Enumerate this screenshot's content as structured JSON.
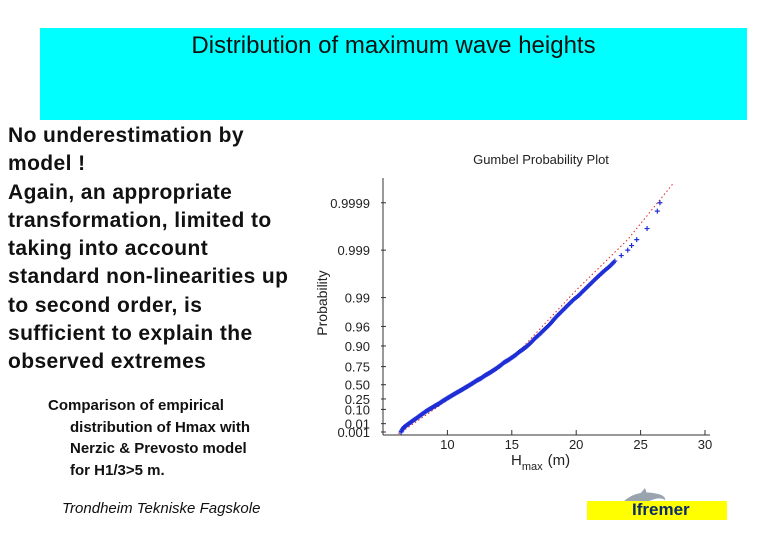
{
  "slide": {
    "title": "Distribution of maximum wave heights",
    "body_lines": [
      "No underestimation by",
      "model !",
      "Again, an appropriate",
      "transformation, limited to",
      "taking into account",
      "standard non-linearities up",
      "to second order, is",
      "sufficient to explain the",
      "observed extremes"
    ],
    "caption_lines": [
      "Comparison of empirical",
      "distribution of Hmax with",
      "Nerzic & Prevosto model",
      "for H1/3>5 m."
    ],
    "footer_school": "Trondheim Tekniske Fagskole",
    "logo_text": "Ifremer"
  },
  "colors": {
    "title_band": "#00ffff",
    "logo_band": "#ffff00",
    "data_points": "#1f2fd6",
    "model_line": "#e02020"
  },
  "chart_data": {
    "type": "scatter",
    "title": "Gumbel Probability Plot",
    "ylabel": "Probability",
    "xlabel_main": "H",
    "xlabel_sub": "max",
    "xlabel_unit": "(m)",
    "xlim": [
      5,
      30
    ],
    "x_ticks": [
      10,
      15,
      20,
      25,
      30
    ],
    "y_scale": "gumbel",
    "y_ticks": [
      "0.001",
      "0.01",
      "0.10",
      "0.25",
      "0.50",
      "0.75",
      "0.90",
      "0.96",
      "0.99",
      "0.999",
      "0.9999"
    ],
    "series": [
      {
        "kind": "empirical",
        "marker": "+",
        "points": [
          [
            6.4,
            0.001
          ],
          [
            6.6,
            0.004
          ],
          [
            6.9,
            0.008
          ],
          [
            7.2,
            0.015
          ],
          [
            7.5,
            0.025
          ],
          [
            7.8,
            0.04
          ],
          [
            8.1,
            0.06
          ],
          [
            8.4,
            0.085
          ],
          [
            8.7,
            0.11
          ],
          [
            9.0,
            0.14
          ],
          [
            9.3,
            0.17
          ],
          [
            9.6,
            0.21
          ],
          [
            9.9,
            0.25
          ],
          [
            10.2,
            0.29
          ],
          [
            10.5,
            0.33
          ],
          [
            10.8,
            0.37
          ],
          [
            11.1,
            0.41
          ],
          [
            11.4,
            0.45
          ],
          [
            11.7,
            0.49
          ],
          [
            12.0,
            0.53
          ],
          [
            12.3,
            0.57
          ],
          [
            12.6,
            0.6
          ],
          [
            12.9,
            0.64
          ],
          [
            13.2,
            0.67
          ],
          [
            13.5,
            0.7
          ],
          [
            13.8,
            0.73
          ],
          [
            14.1,
            0.76
          ],
          [
            14.4,
            0.79
          ],
          [
            14.7,
            0.81
          ],
          [
            15.0,
            0.83
          ],
          [
            15.3,
            0.85
          ],
          [
            15.6,
            0.87
          ],
          [
            15.9,
            0.885
          ],
          [
            16.2,
            0.9
          ],
          [
            16.5,
            0.915
          ],
          [
            16.8,
            0.93
          ],
          [
            17.1,
            0.94
          ],
          [
            17.4,
            0.95
          ],
          [
            17.7,
            0.958
          ],
          [
            18.0,
            0.965
          ],
          [
            18.3,
            0.972
          ],
          [
            18.6,
            0.977
          ],
          [
            19.0,
            0.982
          ],
          [
            19.4,
            0.986
          ],
          [
            19.8,
            0.989
          ],
          [
            20.2,
            0.991
          ],
          [
            20.6,
            0.993
          ],
          [
            21.0,
            0.9945
          ],
          [
            21.4,
            0.9957
          ],
          [
            21.8,
            0.9966
          ],
          [
            22.2,
            0.9973
          ],
          [
            22.6,
            0.9978
          ],
          [
            23.0,
            0.9983
          ],
          [
            23.5,
            0.9987
          ],
          [
            24.0,
            0.999
          ],
          [
            24.3,
            0.9992
          ],
          [
            24.7,
            0.9994
          ],
          [
            25.5,
            0.99965
          ],
          [
            26.3,
            0.99985
          ],
          [
            26.5,
            0.9999
          ]
        ]
      },
      {
        "kind": "model",
        "style": "dotted",
        "points": [
          [
            6.2,
            0.0005
          ],
          [
            10.0,
            0.23
          ],
          [
            15.0,
            0.82
          ],
          [
            20.0,
            0.993
          ],
          [
            24.0,
            0.9994
          ],
          [
            27.5,
            0.99996
          ]
        ]
      }
    ]
  }
}
